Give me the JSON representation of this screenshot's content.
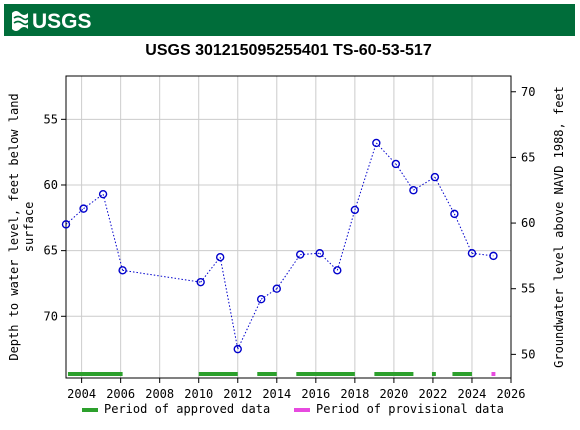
{
  "header": {
    "agency": "USGS",
    "logo_icon": "usgs-wave-logo-icon"
  },
  "chart_data": {
    "type": "scatter",
    "title": "USGS 301215095255401 TS-60-53-517",
    "ylabel_left": [
      "Depth to water level, feet below land",
      "surface"
    ],
    "ylabel_right": "Groundwater level above NAVD 1988, feet",
    "xlim": [
      2003.2,
      2026.0
    ],
    "ylim_left": [
      74.7,
      51.7
    ],
    "ylim_right": [
      48.2,
      71.2
    ],
    "x_ticks": [
      2004,
      2006,
      2008,
      2010,
      2012,
      2014,
      2016,
      2018,
      2020,
      2022,
      2024,
      2026
    ],
    "y_ticks_left": [
      55,
      60,
      65,
      70
    ],
    "y_ticks_right": [
      50,
      55,
      60,
      65,
      70
    ],
    "grid": true,
    "series": [
      {
        "name": "",
        "color": "#0000cc",
        "line_style": "dotted",
        "points": [
          {
            "x": 2003.2,
            "y": 63.0
          },
          {
            "x": 2004.1,
            "y": 61.8
          },
          {
            "x": 2005.1,
            "y": 60.7
          },
          {
            "x": 2006.1,
            "y": 66.5
          },
          {
            "x": 2010.1,
            "y": 67.4
          },
          {
            "x": 2011.1,
            "y": 65.5
          },
          {
            "x": 2012.0,
            "y": 72.5
          },
          {
            "x": 2013.2,
            "y": 68.7
          },
          {
            "x": 2014.0,
            "y": 67.9
          },
          {
            "x": 2015.2,
            "y": 65.3
          },
          {
            "x": 2016.2,
            "y": 65.2
          },
          {
            "x": 2017.1,
            "y": 66.5
          },
          {
            "x": 2018.0,
            "y": 61.9
          },
          {
            "x": 2019.1,
            "y": 56.8
          },
          {
            "x": 2020.1,
            "y": 58.4
          },
          {
            "x": 2021.0,
            "y": 60.4
          },
          {
            "x": 2022.1,
            "y": 59.4
          },
          {
            "x": 2023.1,
            "y": 62.2
          },
          {
            "x": 2024.0,
            "y": 65.2
          },
          {
            "x": 2025.1,
            "y": 65.4
          }
        ]
      }
    ],
    "periods": [
      {
        "start": 2003.3,
        "end": 2006.1,
        "type": "approved"
      },
      {
        "start": 2010.0,
        "end": 2012.0,
        "type": "approved"
      },
      {
        "start": 2013.0,
        "end": 2014.0,
        "type": "approved"
      },
      {
        "start": 2015.0,
        "end": 2018.0,
        "type": "approved"
      },
      {
        "start": 2019.0,
        "end": 2021.0,
        "type": "approved"
      },
      {
        "start": 2021.95,
        "end": 2022.15,
        "type": "approved"
      },
      {
        "start": 2023.0,
        "end": 2024.0,
        "type": "approved"
      },
      {
        "start": 2025.0,
        "end": 2025.2,
        "type": "provisional"
      }
    ],
    "legend": {
      "placement": "bottom",
      "items": [
        {
          "label": "Period of approved data",
          "color": "#2ca02c"
        },
        {
          "label": "Period of provisional data",
          "color": "#e74adf"
        }
      ]
    }
  }
}
